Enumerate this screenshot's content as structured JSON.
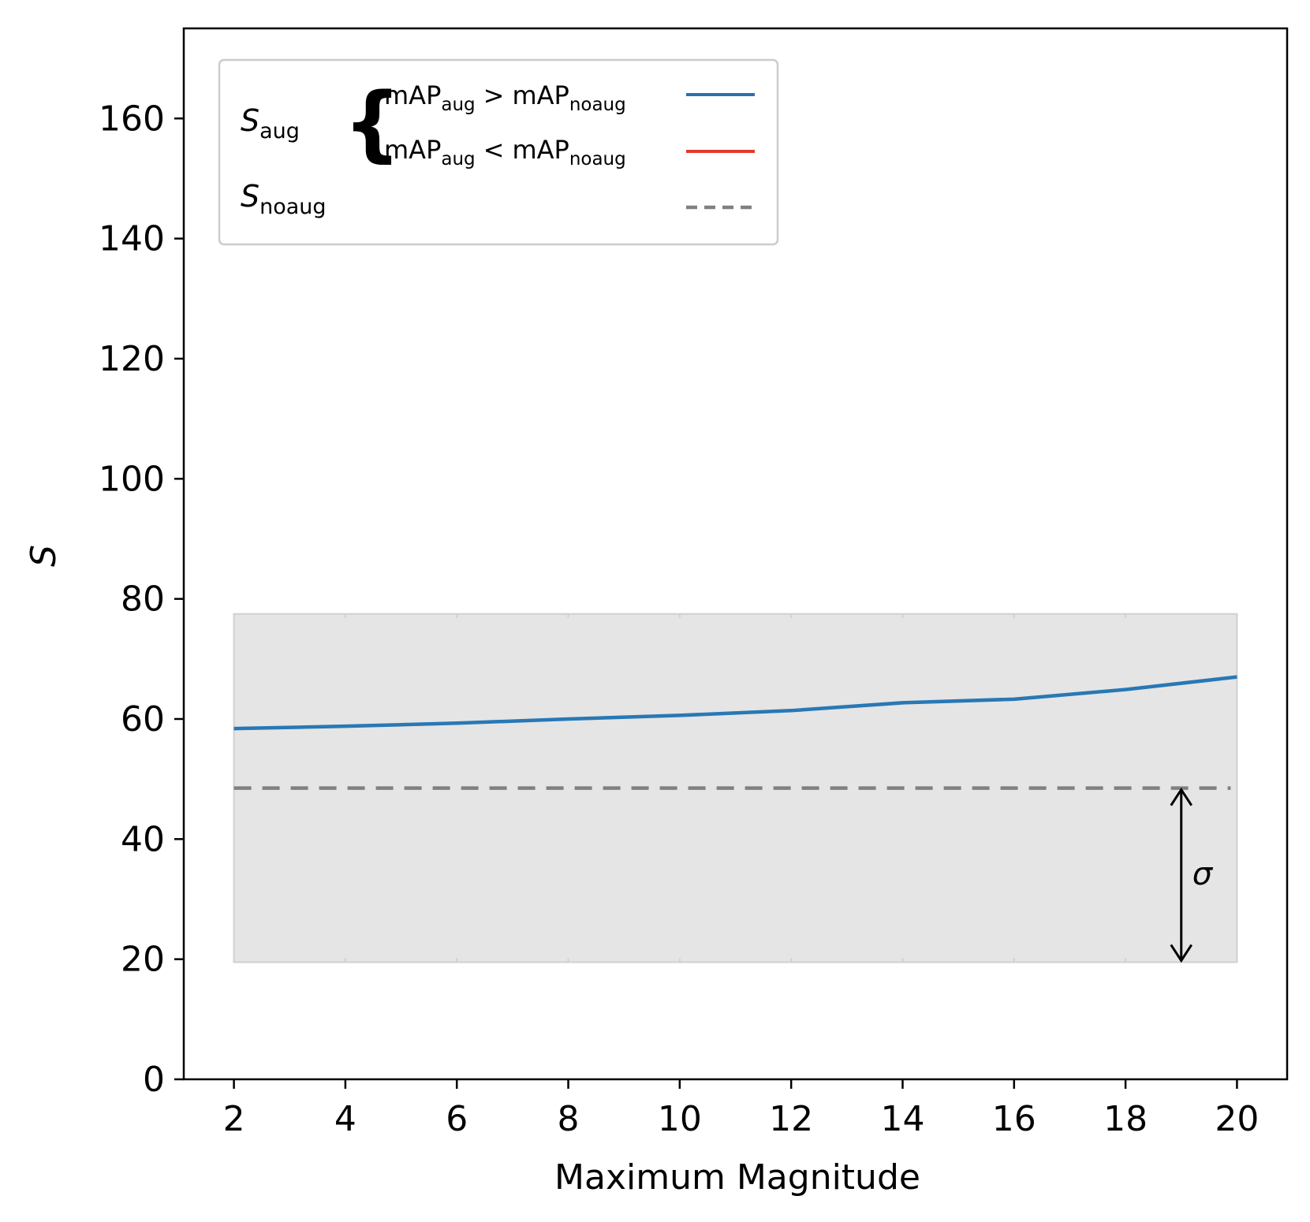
{
  "chart_data": {
    "type": "line",
    "title": "",
    "xlabel": "Maximum Magnitude",
    "ylabel": "S",
    "xlim": [
      1.1,
      20.9
    ],
    "ylim": [
      0,
      175
    ],
    "x_ticks": [
      2,
      4,
      6,
      8,
      10,
      12,
      14,
      16,
      18,
      20
    ],
    "y_ticks": [
      0,
      20,
      40,
      60,
      80,
      100,
      120,
      140,
      160
    ],
    "x_tick_labels": [
      "2",
      "4",
      "6",
      "8",
      "10",
      "12",
      "14",
      "16",
      "18",
      "20"
    ],
    "y_tick_labels": [
      "0",
      "20",
      "40",
      "60",
      "80",
      "100",
      "120",
      "140",
      "160"
    ],
    "band": {
      "x": [
        2,
        20
      ],
      "y_low": 19.5,
      "y_high": 77.5,
      "color": "#e5e5e5"
    },
    "series": [
      {
        "name": "S_aug (mAP_aug > mAP_noaug)",
        "color": "#2878b5",
        "style": "solid",
        "x": [
          2,
          4,
          6,
          8,
          10,
          12,
          14,
          16,
          18,
          20
        ],
        "y": [
          58.4,
          58.8,
          59.3,
          60.0,
          60.6,
          61.4,
          62.7,
          63.3,
          64.9,
          67.0
        ]
      },
      {
        "name": "S_noaug",
        "color": "#808080",
        "style": "dashed",
        "x": [
          2,
          20
        ],
        "y": [
          48.5,
          48.5
        ]
      }
    ],
    "sigma_arrow": {
      "x": 19,
      "y_from": 48.5,
      "y_to": 19.5,
      "label": "σ"
    },
    "legend": {
      "placement": "top-left",
      "rows": [
        {
          "symbol": "S",
          "subscript": "aug",
          "group": "brace"
        },
        {
          "symbol": "S",
          "subscript": "noaug"
        }
      ],
      "brace_entries": [
        {
          "lhs": "mAP",
          "lhs_sub": "aug",
          "op": ">",
          "rhs": "mAP",
          "rhs_sub": "noaug",
          "color": "#2e6fb0"
        },
        {
          "lhs": "mAP",
          "lhs_sub": "aug",
          "op": "<",
          "rhs": "mAP",
          "rhs_sub": "noaug",
          "color": "#e03b2c"
        }
      ],
      "noaug_line_color": "#808080"
    }
  }
}
